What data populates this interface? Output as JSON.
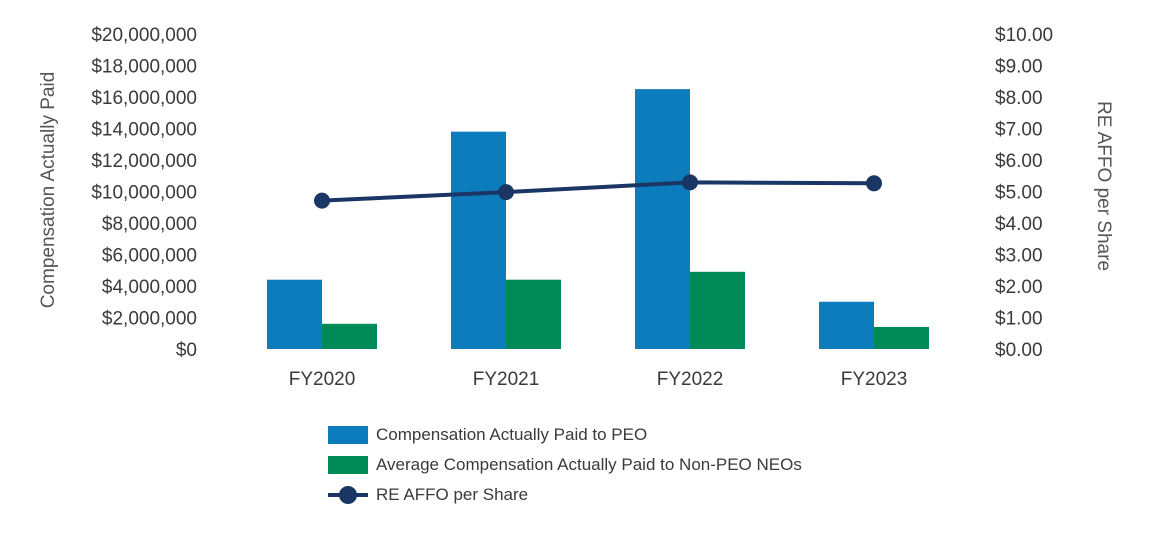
{
  "chart_data": {
    "type": "bar",
    "categories": [
      "FY2020",
      "FY2021",
      "FY2022",
      "FY2023"
    ],
    "series": [
      {
        "name": "Compensation Actually Paid to PEO",
        "axis": "left",
        "kind": "bar",
        "color": "#0d7cbd",
        "values": [
          4400000,
          13800000,
          16500000,
          3000000
        ]
      },
      {
        "name": "Average Compensation Actually Paid to Non-PEO NEOs",
        "axis": "left",
        "kind": "bar",
        "color": "#008a58",
        "values": [
          1600000,
          4400000,
          4900000,
          1400000
        ]
      },
      {
        "name": "RE AFFO per Share",
        "axis": "right",
        "kind": "line",
        "color": "#1a3664",
        "values": [
          4.71,
          4.98,
          5.29,
          5.26
        ]
      }
    ],
    "left_axis": {
      "label": "Compensation Actually Paid",
      "ylim": [
        0,
        20000000
      ],
      "ticks": [
        "$0",
        "$2,000,000",
        "$4,000,000",
        "$6,000,000",
        "$8,000,000",
        "$10,000,000",
        "$12,000,000",
        "$14,000,000",
        "$16,000,000",
        "$18,000,000",
        "$20,000,000"
      ]
    },
    "right_axis": {
      "label": "RE AFFO per Share",
      "ylim": [
        0,
        10
      ],
      "ticks": [
        "$0.00",
        "$1.00",
        "$2.00",
        "$3.00",
        "$4.00",
        "$5.00",
        "$6.00",
        "$7.00",
        "$8.00",
        "$9.00",
        "$10.00"
      ]
    },
    "legend_position": "bottom-center",
    "grid": false
  },
  "legend": [
    {
      "label": "Compensation Actually Paid to PEO",
      "color": "#0d7cbd",
      "kind": "bar"
    },
    {
      "label": "Average Compensation Actually Paid to Non-PEO NEOs",
      "color": "#008a58",
      "kind": "bar"
    },
    {
      "label": "RE AFFO per Share",
      "color": "#1a3664",
      "kind": "line"
    }
  ]
}
